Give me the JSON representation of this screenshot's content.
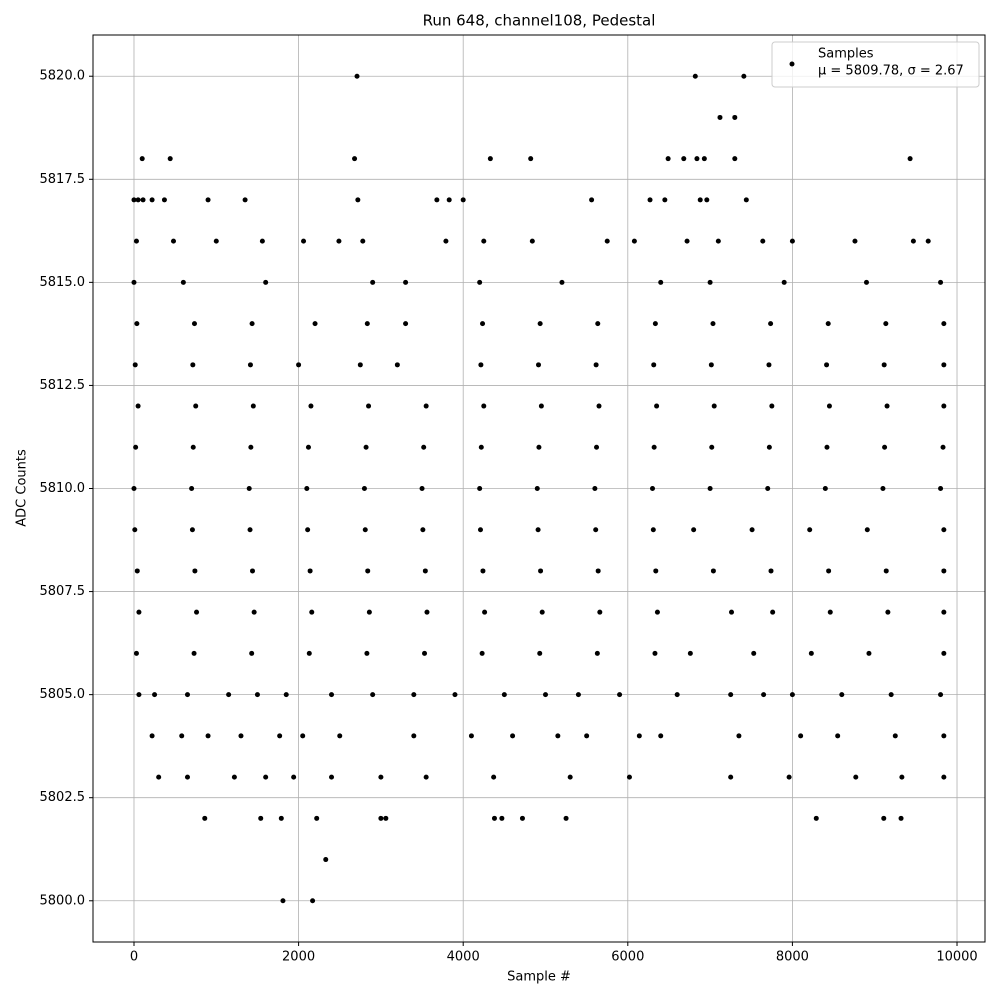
{
  "chart_data": {
    "type": "scatter",
    "title": "Run 648, channel108, Pedestal",
    "x_label": "Sample #",
    "y_label": "ADC Counts",
    "xlim": [
      -498,
      10340
    ],
    "ylim": [
      5799.0,
      5821.0
    ],
    "xticks": [
      0,
      2000,
      4000,
      6000,
      8000,
      10000
    ],
    "yticks": [
      {
        "value": 5800,
        "label": "5800.0"
      },
      {
        "value": 5802.5,
        "label": "5802.5"
      },
      {
        "value": 5805,
        "label": "5805.0"
      },
      {
        "value": 5807.5,
        "label": "5807.5"
      },
      {
        "value": 5810,
        "label": "5810.0"
      },
      {
        "value": 5812.5,
        "label": "5812.5"
      },
      {
        "value": 5815,
        "label": "5815.0"
      },
      {
        "value": 5817.5,
        "label": "5817.5"
      },
      {
        "value": 5820,
        "label": "5820.0"
      }
    ],
    "grid": true,
    "legend": "upper right",
    "legend_note": "μ = 5809.78, σ = 2.67",
    "series": [
      {
        "name": "Samples",
        "color": "#000000",
        "x": [
          1810,
          2170,
          2330,
          860,
          1540,
          1790,
          2220,
          3000,
          3060,
          4380,
          4470,
          4720,
          5250,
          8290,
          9110,
          9320,
          2710,
          6820,
          7410,
          7120,
          7300,
          100,
          440,
          2680,
          4330,
          4820,
          6490,
          6680,
          6840,
          6930,
          7300,
          9430,
          0,
          50,
          110,
          220,
          370,
          900,
          1350,
          2720,
          3680,
          3830,
          4000,
          5560,
          6270,
          6450,
          6880,
          6960,
          7440,
          30,
          480,
          1000,
          1560,
          2060,
          2490,
          2780,
          3790,
          4250,
          4840,
          5750,
          6080,
          6720,
          7100,
          7640,
          8000,
          8760,
          9470,
          9650,
          0,
          600,
          1600,
          2900,
          3300,
          4200,
          5200,
          6400,
          7000,
          7900,
          8900,
          9800,
          300,
          650,
          1220,
          1600,
          1940,
          2400,
          3000,
          3550,
          4370,
          5300,
          6020,
          7250,
          7960,
          8770,
          9330,
          9840,
          220,
          580,
          900,
          1300,
          1770,
          2050,
          2500,
          3400,
          4100,
          4600,
          5150,
          5500,
          6140,
          6400,
          7350,
          8100,
          8550,
          9250,
          9840,
          60,
          250,
          650,
          1150,
          1500,
          1850,
          2400,
          2900,
          3400,
          3900,
          4500,
          5000,
          5400,
          5900,
          6600,
          7250,
          7650,
          8000,
          8600,
          9200,
          9800,
          30,
          730,
          1430,
          2130,
          2830,
          3530,
          4230,
          4930,
          5630,
          6330,
          6760,
          7530,
          8230,
          8930,
          9840,
          60,
          760,
          1460,
          2160,
          2860,
          3560,
          4260,
          4960,
          5660,
          6360,
          7260,
          7760,
          8460,
          9160,
          9840,
          40,
          740,
          1440,
          2140,
          2840,
          3540,
          4240,
          4940,
          5640,
          6340,
          7040,
          7740,
          8440,
          9140,
          9840,
          10,
          710,
          1410,
          2110,
          2810,
          3510,
          4210,
          4910,
          5610,
          6310,
          6800,
          7510,
          8210,
          8910,
          9840,
          0,
          700,
          1400,
          2100,
          2800,
          3500,
          4200,
          4900,
          5600,
          6300,
          7000,
          7700,
          8400,
          9100,
          9800,
          20,
          720,
          1420,
          2120,
          2820,
          3520,
          4220,
          4920,
          5620,
          6320,
          7020,
          7720,
          8420,
          9120,
          9830,
          50,
          750,
          1450,
          2150,
          2850,
          3550,
          4250,
          4950,
          5650,
          6350,
          7050,
          7750,
          8450,
          9150,
          9840,
          15,
          715,
          1415,
          2000,
          2750,
          3200,
          4215,
          4915,
          5615,
          6315,
          7015,
          7715,
          8415,
          9115,
          9840,
          35,
          735,
          1435,
          2200,
          2835,
          3300,
          4235,
          4935,
          5635,
          6335,
          7035,
          7735,
          8435,
          9135,
          9840
        ],
        "values": [
          5800,
          5800,
          5801,
          5802,
          5802,
          5802,
          5802,
          5802,
          5802,
          5802,
          5802,
          5802,
          5802,
          5802,
          5802,
          5802,
          5820,
          5820,
          5820,
          5819,
          5819,
          5818,
          5818,
          5818,
          5818,
          5818,
          5818,
          5818,
          5818,
          5818,
          5818,
          5818,
          5817,
          5817,
          5817,
          5817,
          5817,
          5817,
          5817,
          5817,
          5817,
          5817,
          5817,
          5817,
          5817,
          5817,
          5817,
          5817,
          5817,
          5816,
          5816,
          5816,
          5816,
          5816,
          5816,
          5816,
          5816,
          5816,
          5816,
          5816,
          5816,
          5816,
          5816,
          5816,
          5816,
          5816,
          5816,
          5816,
          5815,
          5815,
          5815,
          5815,
          5815,
          5815,
          5815,
          5815,
          5815,
          5815,
          5815,
          5815,
          5803,
          5803,
          5803,
          5803,
          5803,
          5803,
          5803,
          5803,
          5803,
          5803,
          5803,
          5803,
          5803,
          5803,
          5803,
          5803,
          5804,
          5804,
          5804,
          5804,
          5804,
          5804,
          5804,
          5804,
          5804,
          5804,
          5804,
          5804,
          5804,
          5804,
          5804,
          5804,
          5804,
          5804,
          5804,
          5805,
          5805,
          5805,
          5805,
          5805,
          5805,
          5805,
          5805,
          5805,
          5805,
          5805,
          5805,
          5805,
          5805,
          5805,
          5805,
          5805,
          5805,
          5805,
          5805,
          5805,
          5806,
          5806,
          5806,
          5806,
          5806,
          5806,
          5806,
          5806,
          5806,
          5806,
          5806,
          5806,
          5806,
          5806,
          5806,
          5807,
          5807,
          5807,
          5807,
          5807,
          5807,
          5807,
          5807,
          5807,
          5807,
          5807,
          5807,
          5807,
          5807,
          5807,
          5808,
          5808,
          5808,
          5808,
          5808,
          5808,
          5808,
          5808,
          5808,
          5808,
          5808,
          5808,
          5808,
          5808,
          5808,
          5809,
          5809,
          5809,
          5809,
          5809,
          5809,
          5809,
          5809,
          5809,
          5809,
          5809,
          5809,
          5809,
          5809,
          5809,
          5810,
          5810,
          5810,
          5810,
          5810,
          5810,
          5810,
          5810,
          5810,
          5810,
          5810,
          5810,
          5810,
          5810,
          5810,
          5811,
          5811,
          5811,
          5811,
          5811,
          5811,
          5811,
          5811,
          5811,
          5811,
          5811,
          5811,
          5811,
          5811,
          5811,
          5812,
          5812,
          5812,
          5812,
          5812,
          5812,
          5812,
          5812,
          5812,
          5812,
          5812,
          5812,
          5812,
          5812,
          5812,
          5813,
          5813,
          5813,
          5813,
          5813,
          5813,
          5813,
          5813,
          5813,
          5813,
          5813,
          5813,
          5813,
          5813,
          5813,
          5814,
          5814,
          5814,
          5814,
          5814,
          5814,
          5814,
          5814,
          5814,
          5814,
          5814,
          5814,
          5814,
          5814,
          5814
        ]
      }
    ]
  }
}
